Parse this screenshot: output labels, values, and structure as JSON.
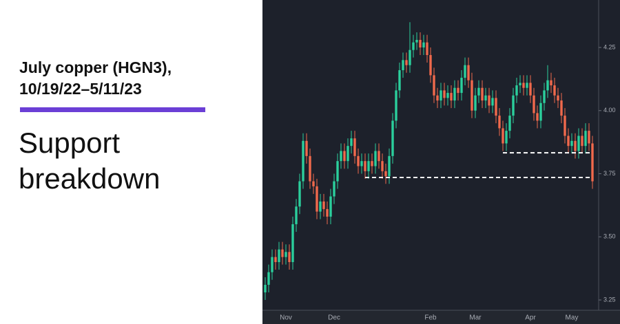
{
  "header": {
    "title_lines": [
      "July copper (HGN3),",
      "10/19/22–5/11/23"
    ],
    "subtitle_lines": [
      "Support",
      "breakdown"
    ]
  },
  "chart_data": {
    "type": "candlestick",
    "categories": [
      null,
      null,
      null,
      null,
      null,
      null,
      "Nov",
      null,
      null,
      null,
      null,
      null,
      null,
      null,
      null,
      null,
      null,
      null,
      null,
      null,
      "Dec",
      null,
      null,
      null,
      null,
      null,
      null,
      null,
      null,
      null,
      null,
      null,
      null,
      null,
      null,
      null,
      null,
      null,
      null,
      null,
      null,
      null,
      null,
      null,
      null,
      null,
      null,
      null,
      "Feb",
      null,
      null,
      null,
      null,
      null,
      null,
      null,
      null,
      null,
      null,
      null,
      null,
      "Mar",
      null,
      null,
      null,
      null,
      null,
      null,
      null,
      null,
      null,
      null,
      null,
      null,
      null,
      null,
      null,
      "Apr",
      null,
      null,
      null,
      null,
      null,
      null,
      null,
      null,
      null,
      null,
      null,
      "May",
      null,
      null,
      null,
      null,
      null,
      null
    ],
    "open": [
      3.28,
      3.31,
      3.36,
      3.42,
      3.4,
      3.45,
      3.42,
      3.44,
      3.4,
      3.55,
      3.62,
      3.72,
      3.88,
      3.82,
      3.72,
      3.7,
      3.6,
      3.64,
      3.61,
      3.58,
      3.66,
      3.72,
      3.8,
      3.84,
      3.8,
      3.86,
      3.89,
      3.82,
      3.78,
      3.8,
      3.76,
      3.8,
      3.78,
      3.84,
      3.8,
      3.76,
      3.74,
      3.82,
      3.96,
      4.08,
      4.16,
      4.2,
      4.18,
      4.24,
      4.27,
      4.28,
      4.25,
      4.27,
      4.22,
      4.14,
      4.06,
      4.04,
      4.08,
      4.05,
      4.07,
      4.04,
      4.09,
      4.07,
      4.13,
      4.18,
      4.12,
      4.0,
      4.06,
      4.09,
      4.04,
      4.06,
      4.02,
      4.05,
      3.98,
      3.93,
      3.87,
      3.92,
      3.98,
      4.06,
      4.1,
      4.11,
      4.09,
      4.11,
      4.06,
      3.99,
      3.96,
      4.03,
      4.08,
      4.12,
      4.1,
      4.06,
      4.04,
      3.98,
      3.9,
      3.86,
      3.88,
      3.84,
      3.9,
      3.86,
      3.92,
      3.87
    ],
    "high": [
      3.34,
      3.39,
      3.45,
      3.45,
      3.48,
      3.48,
      3.47,
      3.47,
      3.58,
      3.65,
      3.75,
      3.91,
      3.91,
      3.85,
      3.75,
      3.73,
      3.67,
      3.67,
      3.64,
      3.69,
      3.75,
      3.83,
      3.87,
      3.87,
      3.89,
      3.92,
      3.92,
      3.85,
      3.83,
      3.83,
      3.83,
      3.83,
      3.87,
      3.87,
      3.83,
      3.79,
      3.85,
      3.99,
      4.11,
      4.19,
      4.23,
      4.23,
      4.35,
      4.3,
      4.31,
      4.31,
      4.3,
      4.3,
      4.25,
      4.17,
      4.09,
      4.11,
      4.11,
      4.1,
      4.1,
      4.12,
      4.12,
      4.16,
      4.21,
      4.21,
      4.15,
      4.09,
      4.12,
      4.12,
      4.09,
      4.09,
      4.08,
      4.08,
      4.01,
      3.96,
      3.95,
      4.01,
      4.09,
      4.13,
      4.14,
      4.14,
      4.14,
      4.14,
      4.09,
      4.02,
      4.06,
      4.11,
      4.18,
      4.15,
      4.13,
      4.09,
      4.07,
      4.01,
      3.93,
      3.91,
      3.91,
      3.93,
      3.93,
      3.95,
      3.95,
      3.9
    ],
    "low": [
      3.25,
      3.28,
      3.33,
      3.37,
      3.37,
      3.39,
      3.39,
      3.37,
      3.37,
      3.52,
      3.59,
      3.69,
      3.79,
      3.69,
      3.67,
      3.57,
      3.57,
      3.58,
      3.55,
      3.55,
      3.63,
      3.69,
      3.77,
      3.77,
      3.77,
      3.83,
      3.79,
      3.75,
      3.75,
      3.73,
      3.73,
      3.75,
      3.75,
      3.77,
      3.73,
      3.71,
      3.71,
      3.79,
      3.93,
      4.05,
      4.13,
      4.15,
      4.15,
      4.21,
      4.24,
      4.22,
      4.22,
      4.19,
      4.11,
      4.03,
      4.01,
      4.01,
      4.02,
      4.02,
      4.01,
      4.01,
      4.04,
      4.04,
      4.1,
      4.09,
      3.97,
      3.97,
      4.03,
      4.01,
      4.01,
      3.99,
      3.99,
      3.95,
      3.9,
      3.84,
      3.84,
      3.89,
      3.95,
      4.03,
      4.07,
      4.06,
      4.06,
      4.03,
      3.96,
      3.93,
      3.93,
      4.0,
      4.05,
      4.07,
      4.03,
      4.01,
      3.95,
      3.87,
      3.83,
      3.83,
      3.81,
      3.81,
      3.83,
      3.83,
      3.84,
      3.69
    ],
    "close": [
      3.31,
      3.36,
      3.42,
      3.4,
      3.45,
      3.42,
      3.44,
      3.4,
      3.55,
      3.62,
      3.72,
      3.88,
      3.82,
      3.72,
      3.7,
      3.6,
      3.64,
      3.61,
      3.58,
      3.66,
      3.72,
      3.8,
      3.84,
      3.8,
      3.86,
      3.89,
      3.82,
      3.78,
      3.8,
      3.76,
      3.8,
      3.78,
      3.84,
      3.8,
      3.76,
      3.74,
      3.82,
      3.96,
      4.08,
      4.16,
      4.2,
      4.18,
      4.24,
      4.27,
      4.28,
      4.25,
      4.27,
      4.22,
      4.14,
      4.06,
      4.04,
      4.08,
      4.05,
      4.07,
      4.04,
      4.09,
      4.07,
      4.13,
      4.18,
      4.12,
      4.0,
      4.06,
      4.09,
      4.04,
      4.06,
      4.02,
      4.05,
      3.98,
      3.93,
      3.87,
      3.92,
      3.98,
      4.06,
      4.1,
      4.11,
      4.09,
      4.11,
      4.06,
      3.99,
      3.96,
      4.03,
      4.08,
      4.12,
      4.1,
      4.06,
      4.04,
      3.98,
      3.9,
      3.86,
      3.88,
      3.84,
      3.9,
      3.86,
      3.92,
      3.87,
      3.72
    ],
    "up_color": "#2bcf9c",
    "down_color": "#f0694c",
    "ylim": [
      3.212,
      4.438
    ],
    "yticks": [
      {
        "value": 3.25,
        "label": "3.25"
      },
      {
        "value": 3.5,
        "label": "3.50"
      },
      {
        "value": 3.75,
        "label": "3.75"
      },
      {
        "value": 4,
        "label": "4.00"
      },
      {
        "value": 4.25,
        "label": "4.25"
      }
    ],
    "support_lines": [
      {
        "value": 3.833,
        "start": 69
      },
      {
        "value": 3.735,
        "start": 29
      }
    ]
  }
}
